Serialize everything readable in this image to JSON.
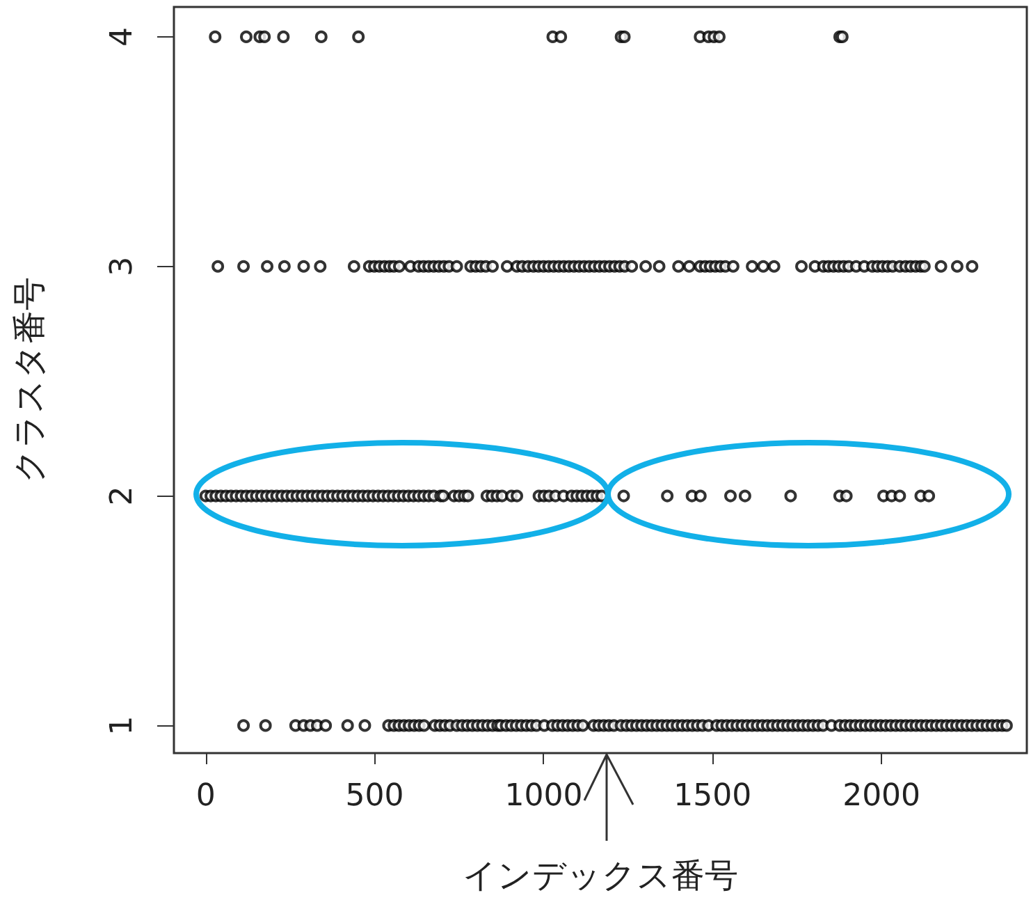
{
  "chart_data": {
    "type": "scatter",
    "xlabel": "インデックス番号",
    "ylabel": "クラスタ番号",
    "xlim": [
      -94,
      2430
    ],
    "ylim": [
      0.88,
      4.13
    ],
    "xticks": [
      0,
      500,
      1000,
      1500,
      2000
    ],
    "yticks": [
      1,
      2,
      3,
      4
    ],
    "marker": "circle",
    "grid": false,
    "series": [
      {
        "color": "#000000",
        "x": [
          112,
          177,
          266,
          290,
          310,
          330,
          355,
          420,
          471,
          541,
          557,
          572,
          587,
          602,
          617,
          632,
          646,
          678,
          693,
          708,
          723,
          743,
          759,
          774,
          789,
          804,
          819,
          834,
          849,
          864,
          873,
          889,
          904,
          919,
          934,
          949,
          964,
          979,
          1002,
          1026,
          1041,
          1056,
          1071,
          1086,
          1101,
          1116,
          1148,
          1163,
          1178,
          1193,
          1208,
          1229,
          1245,
          1260,
          1275,
          1290,
          1305,
          1320,
          1335,
          1350,
          1365,
          1380,
          1395,
          1410,
          1425,
          1440,
          1455,
          1470,
          1488,
          1512,
          1527,
          1542,
          1557,
          1572,
          1587,
          1602,
          1617,
          1632,
          1647,
          1662,
          1677,
          1692,
          1707,
          1722,
          1737,
          1752,
          1767,
          1782,
          1797,
          1812,
          1827,
          1852,
          1876,
          1892,
          1907,
          1922,
          1937,
          1952,
          1967,
          1982,
          1997,
          2012,
          2027,
          2042,
          2057,
          2072,
          2087,
          2102,
          2117,
          2132,
          2147,
          2162,
          2177,
          2192,
          2207,
          2222,
          2237,
          2252,
          2267,
          2282,
          2297,
          2312,
          2327,
          2342,
          2357,
          2370
        ],
        "values": [
          1,
          1,
          1,
          1,
          1,
          1,
          1,
          1,
          1,
          1,
          1,
          1,
          1,
          1,
          1,
          1,
          1,
          1,
          1,
          1,
          1,
          1,
          1,
          1,
          1,
          1,
          1,
          1,
          1,
          1,
          1,
          1,
          1,
          1,
          1,
          1,
          1,
          1,
          1,
          1,
          1,
          1,
          1,
          1,
          1,
          1,
          1,
          1,
          1,
          1,
          1,
          1,
          1,
          1,
          1,
          1,
          1,
          1,
          1,
          1,
          1,
          1,
          1,
          1,
          1,
          1,
          1,
          1,
          1,
          1,
          1,
          1,
          1,
          1,
          1,
          1,
          1,
          1,
          1,
          1,
          1,
          1,
          1,
          1,
          1,
          1,
          1,
          1,
          1,
          1,
          1,
          1,
          1,
          1,
          1,
          1,
          1,
          1,
          1,
          1,
          1,
          1,
          1,
          1,
          1,
          1,
          1,
          1,
          1,
          1,
          1,
          1,
          1,
          1,
          1,
          1,
          1,
          1,
          1,
          1,
          1,
          1,
          1,
          1,
          1,
          1
        ]
      },
      {
        "color": "#000000",
        "x": [
          0,
          15,
          30,
          45,
          60,
          75,
          90,
          105,
          120,
          135,
          150,
          165,
          180,
          195,
          210,
          225,
          240,
          255,
          270,
          285,
          300,
          315,
          330,
          345,
          360,
          375,
          390,
          405,
          420,
          435,
          450,
          465,
          480,
          495,
          510,
          525,
          540,
          555,
          570,
          585,
          600,
          615,
          630,
          645,
          660,
          675,
          695,
          703,
          735,
          750,
          765,
          776,
          832,
          847,
          862,
          877,
          905,
          921,
          986,
          1001,
          1016,
          1035,
          1059,
          1083,
          1098,
          1113,
          1128,
          1143,
          1158,
          1172,
          1237,
          1366,
          1439,
          1464,
          1553,
          1596,
          1731,
          1876,
          1896,
          2006,
          2030,
          2054,
          2116,
          2140
        ],
        "values": [
          2,
          2,
          2,
          2,
          2,
          2,
          2,
          2,
          2,
          2,
          2,
          2,
          2,
          2,
          2,
          2,
          2,
          2,
          2,
          2,
          2,
          2,
          2,
          2,
          2,
          2,
          2,
          2,
          2,
          2,
          2,
          2,
          2,
          2,
          2,
          2,
          2,
          2,
          2,
          2,
          2,
          2,
          2,
          2,
          2,
          2,
          2,
          2,
          2,
          2,
          2,
          2,
          2,
          2,
          2,
          2,
          2,
          2,
          2,
          2,
          2,
          2,
          2,
          2,
          2,
          2,
          2,
          2,
          2,
          2,
          2,
          2,
          2,
          2,
          2,
          2,
          2,
          2,
          2,
          2,
          2,
          2,
          2,
          2
        ]
      },
      {
        "color": "#000000",
        "x": [
          36,
          112,
          182,
          233,
          290,
          339,
          439,
          484,
          499,
          514,
          529,
          544,
          557,
          573,
          606,
          630,
          645,
          660,
          675,
          690,
          705,
          720,
          743,
          784,
          799,
          814,
          829,
          849,
          892,
          921,
          937,
          954,
          970,
          985,
          1000,
          1015,
          1030,
          1045,
          1060,
          1075,
          1090,
          1105,
          1120,
          1135,
          1150,
          1165,
          1180,
          1195,
          1210,
          1225,
          1240,
          1261,
          1302,
          1342,
          1399,
          1431,
          1463,
          1478,
          1493,
          1508,
          1523,
          1538,
          1561,
          1617,
          1650,
          1682,
          1763,
          1803,
          1828,
          1843,
          1858,
          1873,
          1888,
          1903,
          1925,
          1949,
          1973,
          1988,
          2003,
          2018,
          2033,
          2054,
          2071,
          2086,
          2101,
          2116,
          2127,
          2176,
          2224,
          2268
        ],
        "values": [
          3,
          3,
          3,
          3,
          3,
          3,
          3,
          3,
          3,
          3,
          3,
          3,
          3,
          3,
          3,
          3,
          3,
          3,
          3,
          3,
          3,
          3,
          3,
          3,
          3,
          3,
          3,
          3,
          3,
          3,
          3,
          3,
          3,
          3,
          3,
          3,
          3,
          3,
          3,
          3,
          3,
          3,
          3,
          3,
          3,
          3,
          3,
          3,
          3,
          3,
          3,
          3,
          3,
          3,
          3,
          3,
          3,
          3,
          3,
          3,
          3,
          3,
          3,
          3,
          3,
          3,
          3,
          3,
          3,
          3,
          3,
          3,
          3,
          3,
          3,
          3,
          3,
          3,
          3,
          3,
          3,
          3,
          3,
          3,
          3,
          3,
          3,
          3,
          3,
          3
        ]
      },
      {
        "color": "#000000",
        "x": [
          28,
          120,
          160,
          174,
          230,
          342,
          452,
          1027,
          1051,
          1229,
          1239,
          1463,
          1488,
          1504,
          1520,
          1876,
          1884
        ],
        "values": [
          4,
          4,
          4,
          4,
          4,
          4,
          4,
          4,
          4,
          4,
          4,
          4,
          4,
          4,
          4,
          4,
          4
        ]
      }
    ]
  }
}
